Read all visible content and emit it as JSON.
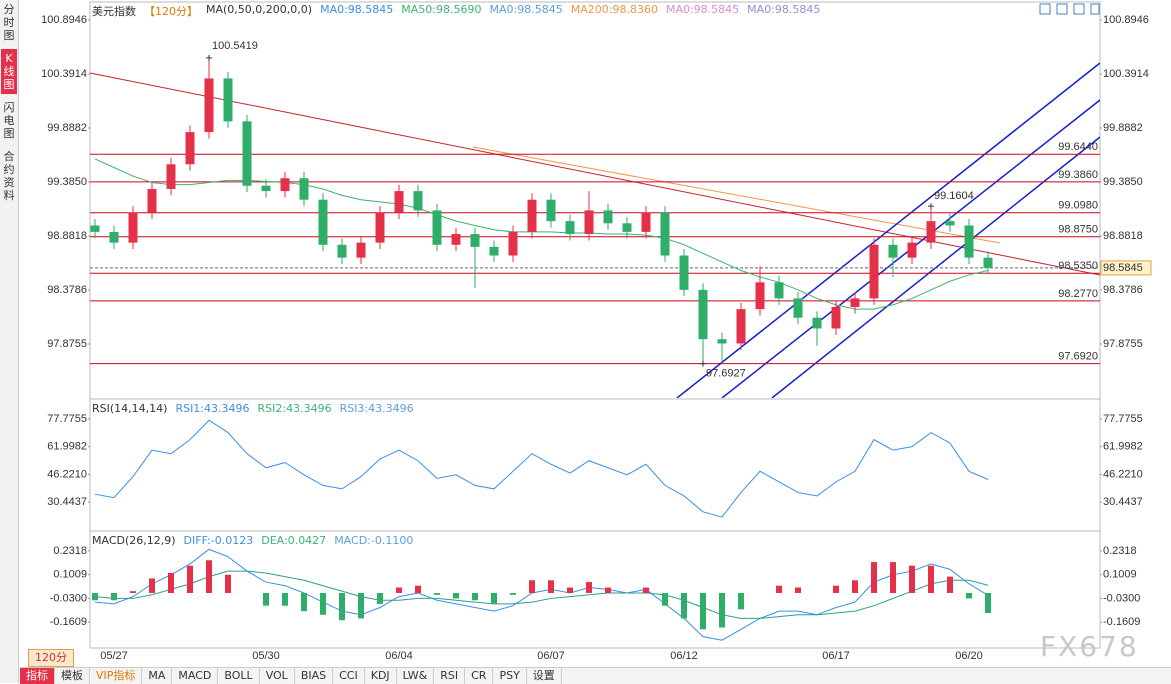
{
  "sidebar": {
    "tabs": [
      "分时图",
      "K线图",
      "闪电图",
      "合约资料"
    ],
    "active": 1
  },
  "chart_data": [
    {
      "type": "candlestick",
      "title": "美元指数",
      "period": "【120分】",
      "indicator": "MA(0,50,0,200,0,0)",
      "readouts": [
        {
          "text": "MA0:98.5845",
          "color": "#3d8fe0"
        },
        {
          "text": "MA50:98.5690",
          "color": "#3cb371"
        },
        {
          "text": "MA0:98.5845",
          "color": "#5aa0e0"
        },
        {
          "text": "MA200:98.8360",
          "color": "#f0954a"
        },
        {
          "text": "MA0:98.5845",
          "color": "#e08ad0"
        },
        {
          "text": "MA0:98.5845",
          "color": "#9a8ad8"
        }
      ],
      "categories": [
        null,
        "05/27",
        null,
        null,
        null,
        null,
        null,
        null,
        null,
        "05/30",
        null,
        null,
        null,
        null,
        null,
        null,
        "06/04",
        null,
        null,
        null,
        null,
        null,
        null,
        null,
        "06/07",
        null,
        null,
        null,
        null,
        null,
        null,
        "06/12",
        null,
        null,
        null,
        null,
        null,
        null,
        null,
        "06/17",
        null,
        null,
        null,
        null,
        null,
        null,
        "06/20",
        null
      ],
      "open": [
        98.98,
        98.92,
        98.82,
        99.1,
        99.32,
        99.55,
        99.85,
        100.35,
        99.95,
        99.35,
        99.3,
        99.42,
        99.22,
        98.8,
        98.68,
        98.82,
        99.1,
        99.3,
        99.12,
        98.8,
        98.9,
        98.78,
        98.7,
        98.92,
        99.22,
        99.02,
        98.9,
        99.12,
        99.0,
        98.92,
        99.1,
        98.7,
        98.38,
        97.92,
        97.88,
        98.2,
        98.45,
        98.3,
        98.12,
        98.02,
        98.22,
        98.3,
        98.8,
        98.68,
        98.82,
        99.02,
        98.98,
        98.68
      ],
      "high": [
        99.04,
        98.98,
        99.16,
        99.38,
        99.61,
        99.91,
        100.5419,
        100.41,
        100.01,
        99.41,
        99.48,
        99.48,
        99.28,
        98.86,
        98.88,
        99.16,
        99.36,
        99.36,
        99.18,
        98.96,
        98.96,
        98.84,
        98.98,
        99.28,
        99.28,
        99.08,
        99.3,
        99.18,
        99.06,
        99.16,
        99.16,
        98.76,
        98.44,
        97.98,
        98.26,
        98.6,
        98.51,
        98.36,
        98.18,
        98.28,
        98.36,
        98.86,
        98.86,
        98.88,
        99.1604,
        99.1,
        99.04,
        98.74
      ],
      "low": [
        98.86,
        98.76,
        98.76,
        99.04,
        99.26,
        99.49,
        99.79,
        99.89,
        99.29,
        99.24,
        99.24,
        99.16,
        98.74,
        98.62,
        98.62,
        98.76,
        99.04,
        99.06,
        98.74,
        98.74,
        98.4,
        98.64,
        98.64,
        98.86,
        98.96,
        98.84,
        98.84,
        98.94,
        98.86,
        98.86,
        98.64,
        98.32,
        97.6927,
        97.7,
        97.82,
        98.14,
        98.24,
        98.06,
        97.86,
        97.96,
        98.16,
        98.24,
        98.5,
        98.62,
        98.76,
        98.92,
        98.62,
        98.53
      ],
      "close": [
        98.92,
        98.82,
        99.1,
        99.32,
        99.55,
        99.85,
        100.35,
        99.95,
        99.35,
        99.3,
        99.42,
        99.22,
        98.8,
        98.68,
        98.82,
        99.1,
        99.3,
        99.12,
        98.8,
        98.9,
        98.78,
        98.7,
        98.92,
        99.22,
        99.02,
        98.9,
        99.12,
        99.0,
        98.92,
        99.1,
        98.7,
        98.38,
        97.92,
        97.88,
        98.2,
        98.45,
        98.3,
        98.12,
        98.02,
        98.22,
        98.3,
        98.8,
        98.68,
        98.82,
        99.02,
        98.98,
        98.68,
        98.5845
      ],
      "up_color": "#e5304a",
      "down_color": "#2fae6a",
      "series": [
        {
          "color": "#3cb371",
          "values": [
            99.6,
            99.52,
            99.44,
            99.38,
            99.36,
            99.36,
            99.38,
            99.4,
            99.4,
            99.39,
            99.38,
            99.36,
            99.32,
            99.26,
            99.22,
            99.2,
            99.18,
            99.14,
            99.08,
            99.02,
            98.98,
            98.94,
            98.92,
            98.92,
            98.92,
            98.91,
            98.91,
            98.9,
            98.9,
            98.89,
            98.86,
            98.8,
            98.72,
            98.64,
            98.56,
            98.5,
            98.45,
            98.38,
            98.3,
            98.24,
            98.2,
            98.2,
            98.24,
            98.3,
            98.38,
            98.46,
            98.52,
            98.56
          ]
        }
      ],
      "levels": [
        {
          "value": 99.644,
          "label": "99.6440"
        },
        {
          "value": 99.386,
          "label": "99.3860"
        },
        {
          "value": 99.098,
          "label": "99.0980"
        },
        {
          "value": 98.875,
          "label": "98.8750"
        },
        {
          "value": 98.535,
          "label": "98.5350"
        },
        {
          "value": 98.277,
          "label": "98.2770"
        },
        {
          "value": 97.692,
          "label": "97.6920"
        }
      ],
      "level_color": "#d0021b",
      "last": 98.5845,
      "max": 100.5419,
      "min": 97.6927,
      "recent_high": 99.1604,
      "max_color": "#e5304a",
      "min_color": "#2fae6a",
      "ylim": [
        97.372,
        100.8946
      ],
      "yticks": [
        100.8946,
        100.3914,
        99.8882,
        {
          "value": 99.385,
          "label": "99.3850"
        },
        98.8818,
        98.3786,
        97.8755
      ]
    },
    {
      "type": "line",
      "title": "RSI(14,14,14)",
      "readouts": [
        {
          "text": "RSI1:43.3496",
          "color": "#3d8fe0"
        },
        {
          "text": "RSI2:43.3496",
          "color": "#3cb371"
        },
        {
          "text": "RSI3:43.3496",
          "color": "#5aa0e0"
        }
      ],
      "series": [
        {
          "color": "#3a8ee6",
          "values": [
            35,
            33,
            45,
            60,
            58,
            66,
            77,
            70,
            58,
            50,
            53,
            46,
            40,
            38,
            45,
            55,
            60,
            54,
            44,
            46,
            40,
            38,
            48,
            58,
            52,
            47,
            54,
            50,
            46,
            52,
            40,
            34,
            25,
            22,
            36,
            48,
            42,
            36,
            34,
            42,
            48,
            66,
            60,
            62,
            70,
            64,
            48,
            43.3496
          ]
        }
      ],
      "ylim": [
        14.67,
        88.48
      ],
      "yticks": [
        77.7755,
        61.9982,
        {
          "value": 46.221,
          "label": "46.2210"
        },
        30.4437
      ]
    },
    {
      "type": "macd",
      "title": "MACD(26,12,9)",
      "readouts": [
        {
          "text": "DIFF:-0.0123",
          "color": "#3d8fe0"
        },
        {
          "text": "DEA:0.0427",
          "color": "#3cb371"
        },
        {
          "text": "MACD:-0.1100",
          "color": "#5aa0e0"
        }
      ],
      "series": [
        {
          "color": "#3a8ee6",
          "values": [
            -0.05,
            -0.06,
            -0.02,
            0.05,
            0.1,
            0.16,
            0.24,
            0.2,
            0.12,
            0.06,
            0.04,
            0.0,
            -0.05,
            -0.1,
            -0.12,
            -0.08,
            -0.02,
            0.0,
            -0.04,
            -0.06,
            -0.08,
            -0.1,
            -0.07,
            0.0,
            0.02,
            0.0,
            0.03,
            0.02,
            0.0,
            0.02,
            -0.06,
            -0.14,
            -0.24,
            -0.26,
            -0.2,
            -0.14,
            -0.1,
            -0.1,
            -0.12,
            -0.08,
            -0.05,
            0.06,
            0.1,
            0.12,
            0.16,
            0.13,
            0.05,
            -0.0123
          ]
        },
        {
          "color": "#2e9e8e",
          "values": [
            -0.02,
            -0.03,
            -0.03,
            -0.01,
            0.02,
            0.05,
            0.09,
            0.12,
            0.12,
            0.11,
            0.09,
            0.07,
            0.04,
            0.01,
            -0.02,
            -0.04,
            -0.04,
            -0.03,
            -0.03,
            -0.04,
            -0.05,
            -0.06,
            -0.06,
            -0.05,
            -0.03,
            -0.02,
            -0.01,
            0.0,
            0.0,
            0.0,
            -0.01,
            -0.04,
            -0.08,
            -0.12,
            -0.14,
            -0.14,
            -0.13,
            -0.12,
            -0.12,
            -0.11,
            -0.1,
            -0.07,
            -0.03,
            0.01,
            0.05,
            0.07,
            0.07,
            0.0427
          ]
        },
        {
          "type": "bar",
          "up_color": "#e5304a",
          "down_color": "#2fae6a",
          "values": [
            -0.04,
            -0.04,
            0.01,
            0.08,
            0.11,
            0.15,
            0.18,
            0.1,
            0.0,
            -0.07,
            -0.07,
            -0.1,
            -0.12,
            -0.15,
            -0.14,
            -0.06,
            0.03,
            0.04,
            -0.01,
            -0.03,
            -0.04,
            -0.06,
            -0.01,
            0.07,
            0.07,
            0.03,
            0.06,
            0.03,
            0.0,
            0.03,
            -0.07,
            -0.14,
            -0.2,
            -0.19,
            -0.09,
            0.0,
            0.04,
            0.03,
            0.0,
            0.04,
            0.07,
            0.17,
            0.17,
            0.15,
            0.15,
            0.09,
            -0.03,
            -0.11
          ]
        }
      ],
      "ylim": [
        -0.3027,
        0.3355
      ],
      "yticks": [
        0.2318,
        0.1009,
        {
          "value": -0.03,
          "label": "-0.0300"
        },
        -0.1609
      ]
    }
  ],
  "period_button": "120分",
  "toolbar": [
    "指标",
    "模板",
    "VIP指标",
    "MA",
    "MACD",
    "BOLL",
    "VOL",
    "BIAS",
    "CCI",
    "KDJ",
    "LW&",
    "RSI",
    "CR",
    "PSY",
    "设置"
  ],
  "watermark": "FX678"
}
